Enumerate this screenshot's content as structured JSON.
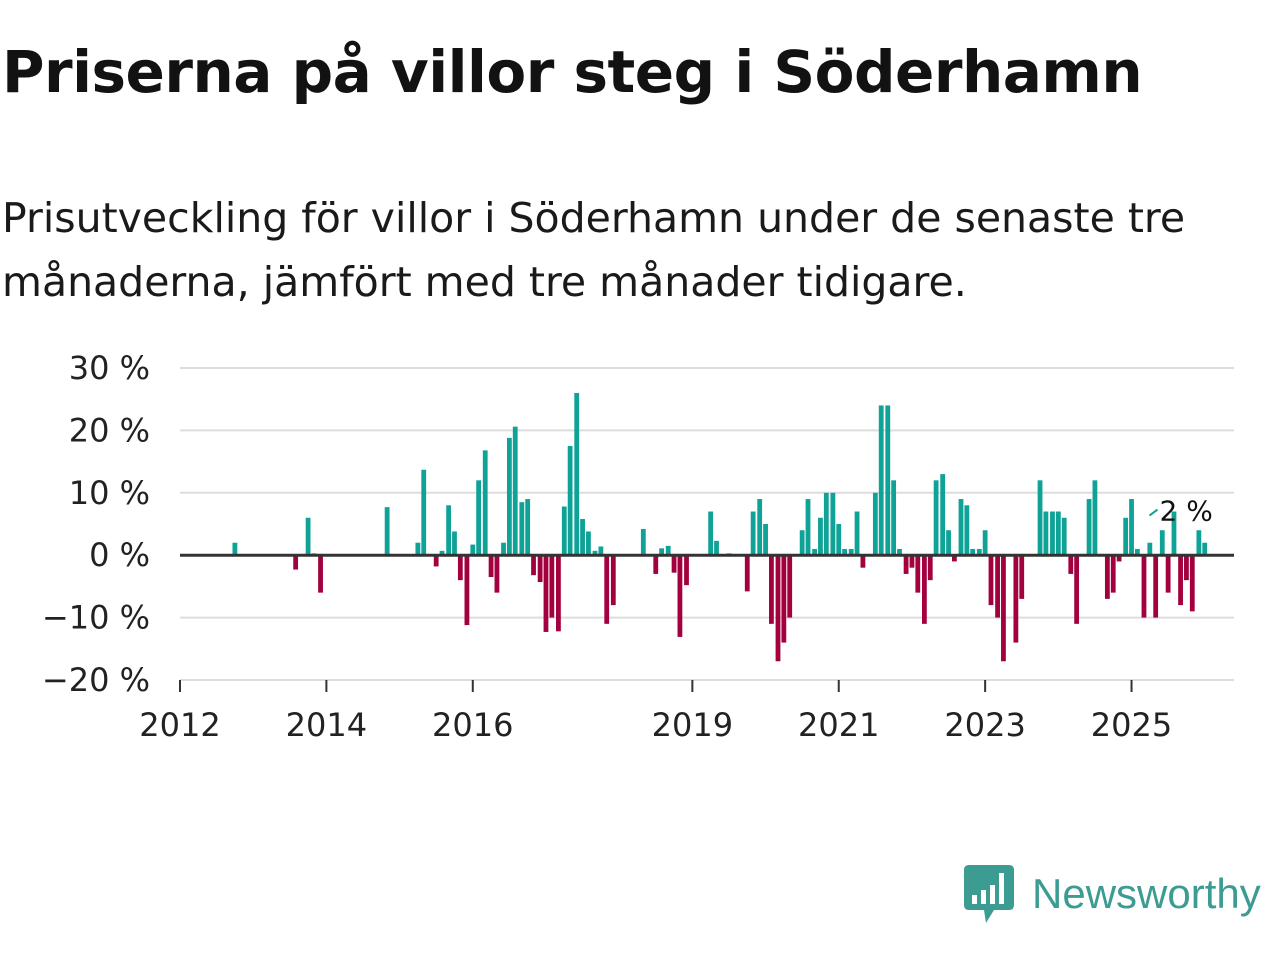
{
  "title": "Priserna på villor steg i Söderhamn",
  "subtitle": "Prisutveckling för villor i Söderhamn under de senaste tre månaderna, jämfört med tre månader tidigare.",
  "brand": {
    "name": "Newsworthy",
    "icon": "newsworthy-logo-icon"
  },
  "colors": {
    "positive": "#0fa296",
    "negative": "#a3003f",
    "grid": "#dddddd",
    "zero_line": "#333333"
  },
  "chart_data": {
    "type": "bar",
    "unit": "%",
    "ylim": [
      -20,
      30
    ],
    "y_ticks": [
      30,
      20,
      10,
      0,
      -10,
      -20
    ],
    "y_tick_labels": [
      "30 %",
      "20 %",
      "10 %",
      "0 %",
      "−10 %",
      "−20 %"
    ],
    "xlim": [
      2012,
      2026.4
    ],
    "x_ticks": [
      2012,
      2014,
      2016,
      2019,
      2021,
      2023,
      2025
    ],
    "x_tick_labels": [
      "2012",
      "2014",
      "2016",
      "2019",
      "2021",
      "2023",
      "2025"
    ],
    "annotation": {
      "x": 2025.3,
      "value": 2,
      "label": "2 %"
    },
    "series": [
      {
        "name": "Prisutveckling",
        "points": [
          {
            "x": 2012.75,
            "y": 2
          },
          {
            "x": 2013.58,
            "y": -2.3
          },
          {
            "x": 2013.75,
            "y": 6
          },
          {
            "x": 2013.83,
            "y": 0.3
          },
          {
            "x": 2013.92,
            "y": -6
          },
          {
            "x": 2014.83,
            "y": 7.7
          },
          {
            "x": 2015.25,
            "y": 2
          },
          {
            "x": 2015.33,
            "y": 13.7
          },
          {
            "x": 2015.5,
            "y": -1.8
          },
          {
            "x": 2015.58,
            "y": 0.7
          },
          {
            "x": 2015.67,
            "y": 8
          },
          {
            "x": 2015.75,
            "y": 3.8
          },
          {
            "x": 2015.83,
            "y": -4
          },
          {
            "x": 2015.92,
            "y": -11.2
          },
          {
            "x": 2016.0,
            "y": 1.7
          },
          {
            "x": 2016.08,
            "y": 12
          },
          {
            "x": 2016.17,
            "y": 16.8
          },
          {
            "x": 2016.25,
            "y": -3.5
          },
          {
            "x": 2016.33,
            "y": -6
          },
          {
            "x": 2016.42,
            "y": 2
          },
          {
            "x": 2016.5,
            "y": 18.8
          },
          {
            "x": 2016.58,
            "y": 20.6
          },
          {
            "x": 2016.67,
            "y": 8.5
          },
          {
            "x": 2016.75,
            "y": 9
          },
          {
            "x": 2016.83,
            "y": -3.2
          },
          {
            "x": 2016.92,
            "y": -4.3
          },
          {
            "x": 2017.0,
            "y": -12.3
          },
          {
            "x": 2017.08,
            "y": -10
          },
          {
            "x": 2017.17,
            "y": -12.2
          },
          {
            "x": 2017.25,
            "y": 7.8
          },
          {
            "x": 2017.33,
            "y": 17.5
          },
          {
            "x": 2017.42,
            "y": 26
          },
          {
            "x": 2017.5,
            "y": 5.8
          },
          {
            "x": 2017.58,
            "y": 3.8
          },
          {
            "x": 2017.67,
            "y": 0.7
          },
          {
            "x": 2017.75,
            "y": 1.4
          },
          {
            "x": 2017.83,
            "y": -11
          },
          {
            "x": 2017.92,
            "y": -8
          },
          {
            "x": 2018.33,
            "y": 4.2
          },
          {
            "x": 2018.5,
            "y": -3
          },
          {
            "x": 2018.58,
            "y": 1.1
          },
          {
            "x": 2018.67,
            "y": 1.5
          },
          {
            "x": 2018.75,
            "y": -2.8
          },
          {
            "x": 2018.83,
            "y": -13.1
          },
          {
            "x": 2018.92,
            "y": -4.8
          },
          {
            "x": 2019.25,
            "y": 7
          },
          {
            "x": 2019.33,
            "y": 2.3
          },
          {
            "x": 2019.5,
            "y": 0.3
          },
          {
            "x": 2019.58,
            "y": -0.2
          },
          {
            "x": 2019.75,
            "y": -5.8
          },
          {
            "x": 2019.83,
            "y": 7
          },
          {
            "x": 2019.92,
            "y": 9
          },
          {
            "x": 2020.0,
            "y": 5
          },
          {
            "x": 2020.08,
            "y": -11
          },
          {
            "x": 2020.17,
            "y": -17
          },
          {
            "x": 2020.25,
            "y": -14
          },
          {
            "x": 2020.33,
            "y": -10
          },
          {
            "x": 2020.5,
            "y": 4
          },
          {
            "x": 2020.58,
            "y": 9
          },
          {
            "x": 2020.67,
            "y": 1
          },
          {
            "x": 2020.75,
            "y": 6
          },
          {
            "x": 2020.83,
            "y": 10
          },
          {
            "x": 2020.92,
            "y": 10
          },
          {
            "x": 2021.0,
            "y": 5
          },
          {
            "x": 2021.08,
            "y": 1
          },
          {
            "x": 2021.17,
            "y": 1
          },
          {
            "x": 2021.25,
            "y": 7
          },
          {
            "x": 2021.33,
            "y": -2
          },
          {
            "x": 2021.5,
            "y": 10
          },
          {
            "x": 2021.58,
            "y": 24
          },
          {
            "x": 2021.67,
            "y": 24
          },
          {
            "x": 2021.75,
            "y": 12
          },
          {
            "x": 2021.83,
            "y": 1
          },
          {
            "x": 2021.92,
            "y": -3
          },
          {
            "x": 2022.0,
            "y": -2
          },
          {
            "x": 2022.08,
            "y": -6
          },
          {
            "x": 2022.17,
            "y": -11
          },
          {
            "x": 2022.25,
            "y": -4
          },
          {
            "x": 2022.33,
            "y": 12
          },
          {
            "x": 2022.42,
            "y": 13
          },
          {
            "x": 2022.5,
            "y": 4
          },
          {
            "x": 2022.58,
            "y": -1
          },
          {
            "x": 2022.67,
            "y": 9
          },
          {
            "x": 2022.75,
            "y": 8
          },
          {
            "x": 2022.83,
            "y": 1
          },
          {
            "x": 2022.92,
            "y": 1
          },
          {
            "x": 2023.0,
            "y": 4
          },
          {
            "x": 2023.08,
            "y": -8
          },
          {
            "x": 2023.17,
            "y": -10
          },
          {
            "x": 2023.25,
            "y": -17
          },
          {
            "x": 2023.42,
            "y": -14
          },
          {
            "x": 2023.5,
            "y": -7
          },
          {
            "x": 2023.75,
            "y": 12
          },
          {
            "x": 2023.83,
            "y": 7
          },
          {
            "x": 2023.92,
            "y": 7
          },
          {
            "x": 2024.0,
            "y": 7
          },
          {
            "x": 2024.08,
            "y": 6
          },
          {
            "x": 2024.17,
            "y": -3
          },
          {
            "x": 2024.25,
            "y": -11
          },
          {
            "x": 2024.42,
            "y": 9
          },
          {
            "x": 2024.5,
            "y": 12
          },
          {
            "x": 2024.67,
            "y": -7
          },
          {
            "x": 2024.75,
            "y": -6
          },
          {
            "x": 2024.83,
            "y": -1
          },
          {
            "x": 2024.92,
            "y": 6
          },
          {
            "x": 2025.0,
            "y": 9
          },
          {
            "x": 2025.08,
            "y": 1
          },
          {
            "x": 2025.17,
            "y": -10
          },
          {
            "x": 2025.25,
            "y": 2
          },
          {
            "x": 2025.33,
            "y": -10
          },
          {
            "x": 2025.42,
            "y": 4
          },
          {
            "x": 2025.5,
            "y": -6
          },
          {
            "x": 2025.58,
            "y": 7
          },
          {
            "x": 2025.67,
            "y": -8
          },
          {
            "x": 2025.75,
            "y": -4
          },
          {
            "x": 2025.83,
            "y": -9
          },
          {
            "x": 2025.92,
            "y": 4
          },
          {
            "x": 2026.0,
            "y": 2
          }
        ]
      }
    ]
  }
}
